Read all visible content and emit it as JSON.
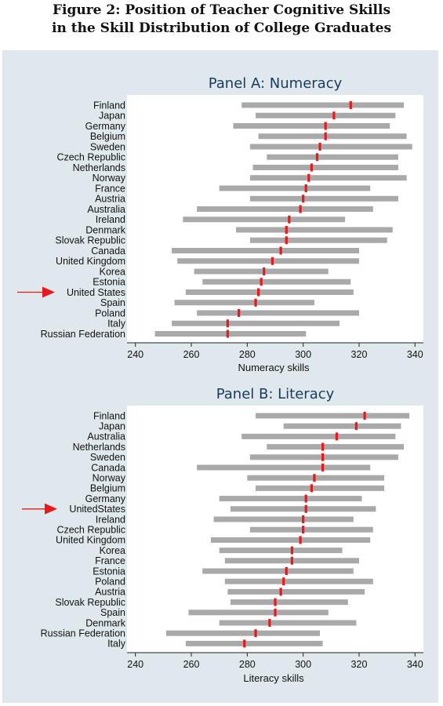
{
  "figure": {
    "title_line1": "Figure 2: Position of Teacher Cognitive Skills",
    "title_line2": "in the Skill Distribution of College Graduates"
  },
  "colors": {
    "background": "#dfe8ec",
    "plot_area": "#ffffff",
    "range_bar": "#a9a9a9",
    "teacher_marker": "#e8181d",
    "arrow": "#e8181d",
    "title": "#1c3a5e"
  },
  "chart_data": [
    {
      "type": "range",
      "title": "Panel A: Numeracy",
      "xlabel": "Numeracy skills",
      "ylabel": "",
      "xlim": [
        237,
        343
      ],
      "xticks": [
        240,
        260,
        280,
        300,
        320,
        340
      ],
      "grid": false,
      "highlight": "United States",
      "categories": [
        "Finland",
        "Japan",
        "Germany",
        "Belgium",
        "Sweden",
        "Czech Republic",
        "Netherlands",
        "Norway",
        "France",
        "Austria",
        "Australia",
        "Ireland",
        "Denmark",
        "Slovak Republic",
        "Canada",
        "United Kingdom",
        "Korea",
        "Estonia",
        "United States",
        "Spain",
        "Poland",
        "Italy",
        "Russian Federation"
      ],
      "series": [
        {
          "name": "range_low",
          "values": [
            278,
            283,
            275,
            284,
            281,
            287,
            282,
            281,
            270,
            281,
            262,
            257,
            276,
            281,
            253,
            255,
            261,
            264,
            258,
            254,
            262,
            253,
            247
          ]
        },
        {
          "name": "range_high",
          "values": [
            336,
            333,
            331,
            337,
            339,
            334,
            334,
            337,
            324,
            334,
            325,
            315,
            332,
            330,
            320,
            320,
            309,
            317,
            318,
            304,
            320,
            313,
            301
          ]
        },
        {
          "name": "teacher",
          "values": [
            317,
            311,
            308,
            308,
            306,
            305,
            303,
            302,
            301,
            300,
            299,
            295,
            294,
            294,
            292,
            289,
            286,
            285,
            284,
            283,
            277,
            273,
            273
          ]
        }
      ]
    },
    {
      "type": "range",
      "title": "Panel B: Literacy",
      "xlabel": "Literacy  skills",
      "ylabel": "",
      "xlim": [
        237,
        343
      ],
      "xticks": [
        240,
        260,
        280,
        300,
        320,
        340
      ],
      "grid": false,
      "highlight": "UnitedStates",
      "categories": [
        "Finland",
        "Japan",
        "Australia",
        "Netherlands",
        "Sweden",
        "Canada",
        "Norway",
        "Belgium",
        "Germany",
        "UnitedStates",
        "Ireland",
        "Czech Republic",
        "United Kingdom",
        "Korea",
        "France",
        "Estonia",
        "Poland",
        "Austria",
        "Slovak Republic",
        "Spain",
        "Denmark",
        "Russian Federation",
        "Italy"
      ],
      "series": [
        {
          "name": "range_low",
          "values": [
            283,
            293,
            278,
            287,
            281,
            262,
            280,
            283,
            270,
            274,
            268,
            281,
            267,
            270,
            272,
            264,
            272,
            273,
            274,
            259,
            270,
            251,
            258
          ]
        },
        {
          "name": "range_high",
          "values": [
            338,
            335,
            333,
            336,
            334,
            324,
            329,
            329,
            321,
            326,
            318,
            325,
            324,
            314,
            320,
            318,
            325,
            322,
            316,
            309,
            319,
            306,
            307
          ]
        },
        {
          "name": "teacher",
          "values": [
            322,
            319,
            312,
            307,
            307,
            307,
            304,
            303,
            301,
            301,
            300,
            300,
            299,
            296,
            296,
            294,
            293,
            292,
            290,
            290,
            288,
            283,
            279
          ]
        }
      ]
    }
  ]
}
